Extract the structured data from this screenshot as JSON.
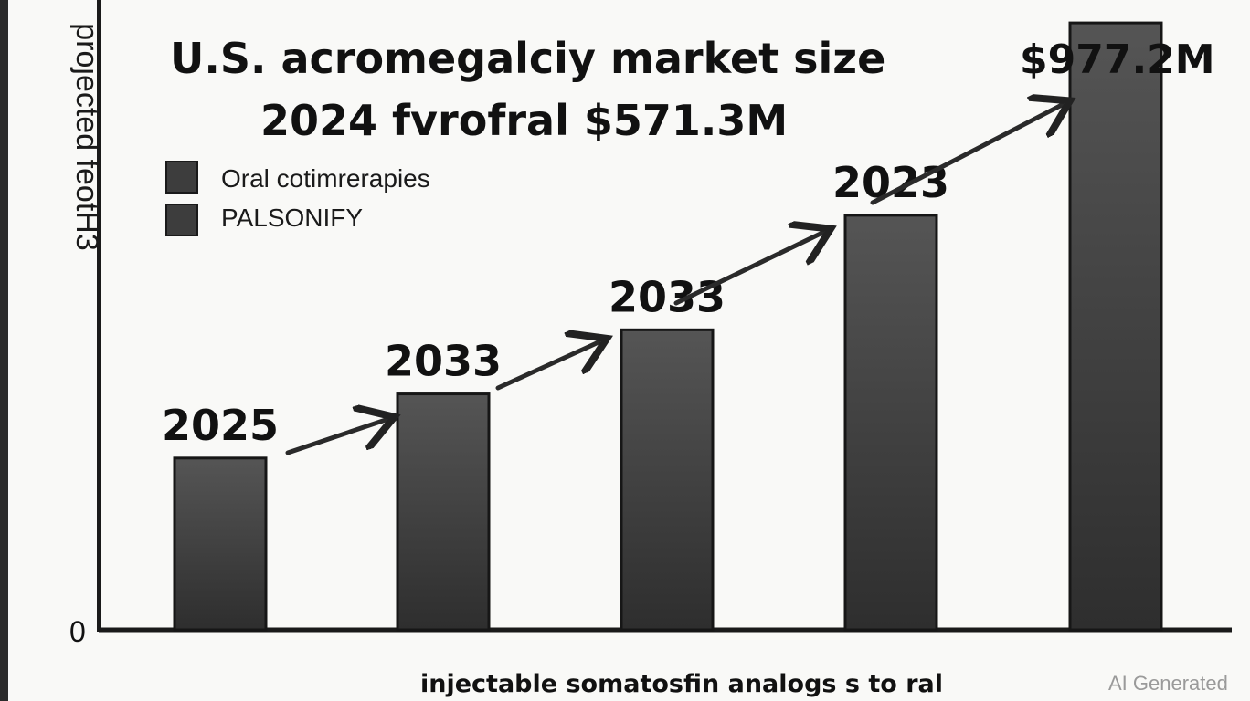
{
  "chart_data": {
    "type": "bar",
    "title_line1": "U.S. acromegalciy market size",
    "title_line2": "2024  fvrofral $571.3M",
    "ylabel": "projected feotH3",
    "xlabel": "injectable somatosfin analogs s to ral",
    "zero_label": "0",
    "top_value_label": "$977.2M",
    "categories": [
      "2025",
      "2033",
      "2033",
      "2023",
      ""
    ],
    "values": [
      300,
      412,
      524,
      724,
      1060
    ],
    "ylim": [
      0,
      1100
    ],
    "grid": false,
    "legend_position": "top-left",
    "legend": [
      {
        "label": "Oral cotimrerapies",
        "color": "#3d3d3d"
      },
      {
        "label": "PALSONIFY",
        "color": "#3d3d3d"
      }
    ],
    "bar_color": "#3c3c3c"
  },
  "watermark": "AI Generated"
}
